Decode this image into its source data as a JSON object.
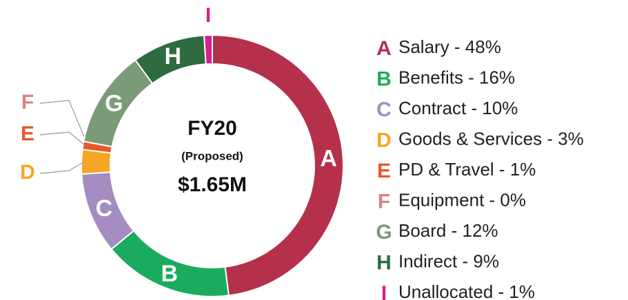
{
  "chart_data": {
    "type": "donut",
    "title": "FY20",
    "subtitle": "(Proposed)",
    "total_label": "$1.65M",
    "letters": [
      "A",
      "B",
      "C",
      "D",
      "E",
      "F",
      "G",
      "H",
      "I"
    ],
    "categories": [
      "Salary - 48%",
      "Benefits - 16%",
      "Contract - 10%",
      "Goods & Services - 3%",
      "PD & Travel - 1%",
      "Equipment - 0%",
      "Board - 12%",
      "Indirect - 9%",
      "Unallocated - 1%"
    ],
    "values": [
      48,
      16,
      10,
      3,
      1,
      0,
      12,
      9,
      1
    ],
    "colors": [
      "#b5304a",
      "#1aab5e",
      "#a58cc0",
      "#f5a623",
      "#e8582a",
      "#e08080",
      "#7a9a78",
      "#2e6b3e",
      "#d6208a"
    ]
  }
}
